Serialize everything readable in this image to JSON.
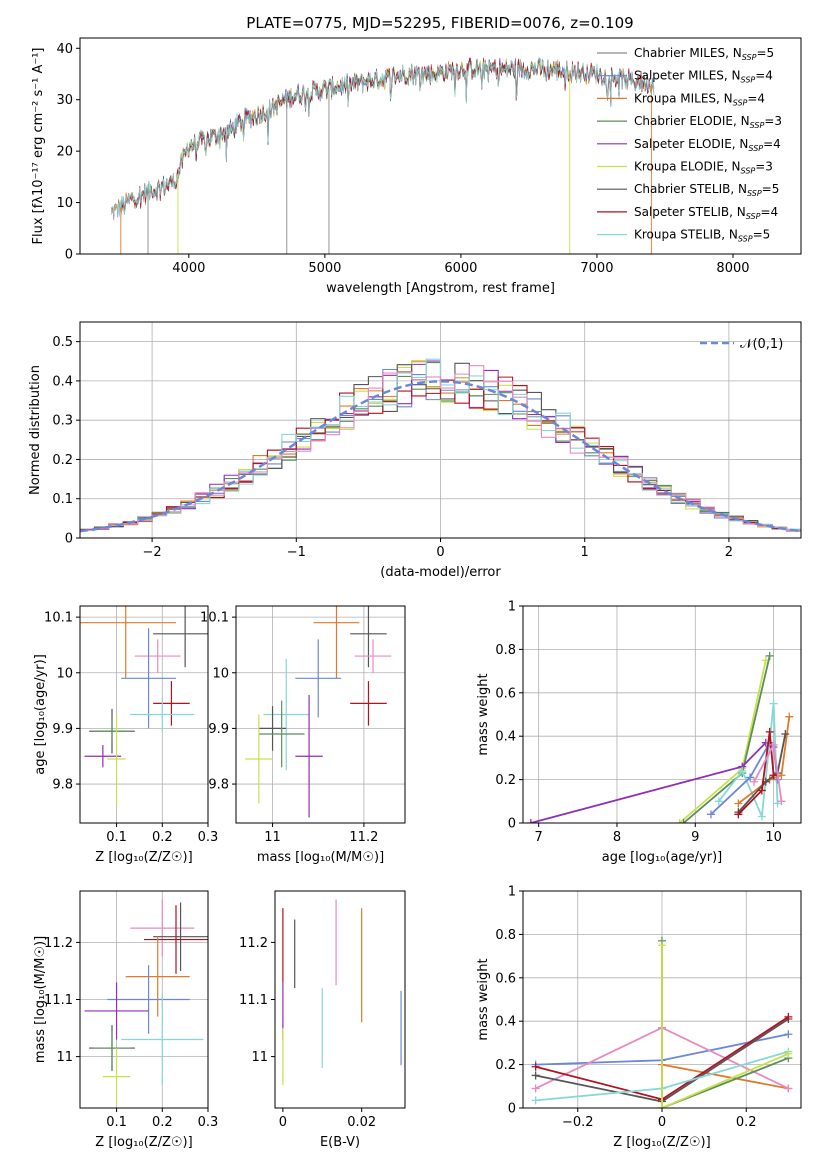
{
  "figure": {
    "title": "PLATE=0775, MJD=52295, FIBERID=0076, z=0.109",
    "colors": [
      "#6a87d9",
      "#e07a2a",
      "#5a8f5a",
      "#8f2fb5",
      "#c9e04a",
      "#555555",
      "#b3121f",
      "#e889c0",
      "#86d8d8",
      "#8a8a8a"
    ]
  },
  "chart_data": [
    {
      "type": "line",
      "title": "PLATE=0775, MJD=52295, FIBERID=0076, z=0.109",
      "xlabel": "wavelength [Angstrom, rest frame]",
      "ylabel": "Flux [fλ10⁻¹⁷ erg cm⁻² s⁻¹ A⁻¹]",
      "xlim": [
        3200,
        8500
      ],
      "ylim": [
        0,
        42
      ],
      "xticks": [
        4000,
        5000,
        6000,
        7000,
        8000
      ],
      "yticks": [
        0,
        10,
        20,
        30,
        40
      ],
      "grid": false,
      "legend_position": "right",
      "continuum": {
        "x": [
          3430,
          3500,
          3600,
          3700,
          3800,
          3900,
          3950,
          4000,
          4100,
          4200,
          4300,
          4400,
          4500,
          4600,
          4700,
          4800,
          4900,
          5000,
          5200,
          5400,
          5600,
          5800,
          6000,
          6200,
          6400,
          6600,
          6800,
          7000,
          7200,
          7400
        ],
        "y": [
          8,
          9,
          11,
          12,
          13,
          14,
          18,
          21,
          22,
          23,
          24,
          26,
          27,
          28,
          30,
          31,
          31.5,
          32,
          33,
          34,
          35,
          35,
          36,
          36,
          36,
          36,
          35.5,
          35,
          34,
          33
        ]
      },
      "series": [
        {
          "name": "Chabrier MILES, N_SSP=5",
          "color": "#8a8a8a",
          "xmin": 3430,
          "xmax": 7420
        },
        {
          "name": "Salpeter MILES, N_SSP=4",
          "color": "#6a87d9",
          "xmin": 3430,
          "xmax": 7420
        },
        {
          "name": "Kroupa MILES, N_SSP=4",
          "color": "#e07a2a",
          "xmin": 3430,
          "xmax": 7420
        },
        {
          "name": "Chabrier ELODIE, N_SSP=3",
          "color": "#5a8f5a",
          "xmin": 3900,
          "xmax": 6800
        },
        {
          "name": "Salpeter ELODIE, N_SSP=4",
          "color": "#8f2fb5",
          "xmin": 3900,
          "xmax": 6800
        },
        {
          "name": "Kroupa ELODIE, N_SSP=3",
          "color": "#c9e04a",
          "xmin": 3900,
          "xmax": 6800
        },
        {
          "name": "Chabrier STELIB, N_SSP=5",
          "color": "#555555",
          "xmin": 3500,
          "xmax": 7400
        },
        {
          "name": "Salpeter STELIB, N_SSP=4",
          "color": "#b3121f",
          "xmin": 3500,
          "xmax": 7400
        },
        {
          "name": "Kroupa STELIB, N_SSP=5",
          "color": "#86d8d8",
          "xmin": 3430,
          "xmax": 7420
        }
      ],
      "legend": [
        {
          "label": "Chabrier MILES, N",
          "sub": "SSP",
          "suffix": "=5",
          "color": "#8a8a8a"
        },
        {
          "label": "Salpeter MILES, N",
          "sub": "SSP",
          "suffix": "=4",
          "color": "#6a87d9"
        },
        {
          "label": "Kroupa MILES, N",
          "sub": "SSP",
          "suffix": "=4",
          "color": "#e07a2a"
        },
        {
          "label": "Chabrier ELODIE, N",
          "sub": "SSP",
          "suffix": "=3",
          "color": "#5a8f5a"
        },
        {
          "label": "Salpeter ELODIE, N",
          "sub": "SSP",
          "suffix": "=4",
          "color": "#8f2fb5"
        },
        {
          "label": "Kroupa ELODIE, N",
          "sub": "SSP",
          "suffix": "=3",
          "color": "#c9e04a"
        },
        {
          "label": "Chabrier STELIB, N",
          "sub": "SSP",
          "suffix": "=5",
          "color": "#555555"
        },
        {
          "label": "Salpeter STELIB, N",
          "sub": "SSP",
          "suffix": "=4",
          "color": "#b3121f"
        },
        {
          "label": "Kroupa STELIB, N",
          "sub": "SSP",
          "suffix": "=5",
          "color": "#86d8d8"
        }
      ]
    },
    {
      "type": "area",
      "xlabel": "(data-model)/error",
      "ylabel": "Normed distribution",
      "xlim": [
        -2.5,
        2.5
      ],
      "ylim": [
        0,
        0.55
      ],
      "xticks": [
        -2,
        -1,
        0,
        1,
        2
      ],
      "yticks": [
        0.0,
        0.1,
        0.2,
        0.3,
        0.4,
        0.5
      ],
      "grid": true,
      "legend_position": "top-right",
      "reference_curve": {
        "label": "𝒩(0,1)",
        "color": "#6a87d9",
        "style": "dashed"
      },
      "bin_width": 0.1,
      "histogram_colors": [
        "#6a87d9",
        "#e07a2a",
        "#5a8f5a",
        "#8f2fb5",
        "#c9e04a",
        "#555555",
        "#b3121f",
        "#86d8d8",
        "#e889c0"
      ]
    },
    {
      "type": "scatter",
      "xlabel": "Z [log₁₀(Z/Z☉)]",
      "ylabel": "age  [log₁₀(age/yr)]",
      "xlim": [
        0.02,
        0.3
      ],
      "ylim": [
        9.73,
        10.12
      ],
      "xticks": [
        0.1,
        0.2,
        0.3
      ],
      "yticks": [
        9.8,
        9.9,
        10.0,
        10.1
      ],
      "grid": true,
      "points": [
        {
          "x": 0.12,
          "y": 10.09,
          "xerr": 0.11,
          "yerr": 0.1,
          "color": "#e07a2a"
        },
        {
          "x": 0.25,
          "y": 10.07,
          "xerr": 0.07,
          "yerr": 0.06,
          "color": "#555555"
        },
        {
          "x": 0.19,
          "y": 10.03,
          "xerr": 0.05,
          "yerr": 0.03,
          "color": "#e889c0"
        },
        {
          "x": 0.17,
          "y": 9.99,
          "xerr": 0.06,
          "yerr": 0.09,
          "color": "#6a87d9"
        },
        {
          "x": 0.22,
          "y": 9.945,
          "xerr": 0.04,
          "yerr": 0.04,
          "color": "#b3121f"
        },
        {
          "x": 0.2,
          "y": 9.925,
          "xerr": 0.07,
          "yerr": 0.03,
          "color": "#86d8d8"
        },
        {
          "x": 0.09,
          "y": 9.895,
          "xerr": 0.05,
          "yerr": 0.04,
          "color": "#555555"
        },
        {
          "x": 0.09,
          "y": 9.895,
          "xerr": 0.04,
          "yerr": 0.02,
          "color": "#5a8f5a"
        },
        {
          "x": 0.07,
          "y": 9.85,
          "xerr": 0.04,
          "yerr": 0.02,
          "color": "#8f2fb5"
        },
        {
          "x": 0.1,
          "y": 9.845,
          "xerr": 0.02,
          "yerr": 0.08,
          "color": "#c9e04a"
        }
      ]
    },
    {
      "type": "scatter",
      "xlabel": "mass [log₁₀(M/M☉)]",
      "ylabel": "",
      "xlim": [
        10.92,
        11.29
      ],
      "ylim": [
        9.73,
        10.12
      ],
      "xticks": [
        11.0,
        11.2
      ],
      "yticks": [
        9.8,
        9.9,
        10.0,
        10.1
      ],
      "grid": true,
      "points": [
        {
          "x": 11.14,
          "y": 10.09,
          "xerr": 0.05,
          "yerr": 0.1,
          "color": "#e07a2a"
        },
        {
          "x": 11.21,
          "y": 10.07,
          "xerr": 0.04,
          "yerr": 0.06,
          "color": "#555555"
        },
        {
          "x": 11.22,
          "y": 10.03,
          "xerr": 0.04,
          "yerr": 0.03,
          "color": "#e889c0"
        },
        {
          "x": 11.1,
          "y": 9.99,
          "xerr": 0.05,
          "yerr": 0.07,
          "color": "#6a87d9"
        },
        {
          "x": 11.21,
          "y": 9.945,
          "xerr": 0.04,
          "yerr": 0.04,
          "color": "#b3121f"
        },
        {
          "x": 11.03,
          "y": 9.925,
          "xerr": 0.05,
          "yerr": 0.1,
          "color": "#86d8d8"
        },
        {
          "x": 11.0,
          "y": 9.9,
          "xerr": 0.03,
          "yerr": 0.04,
          "color": "#555555"
        },
        {
          "x": 11.02,
          "y": 9.89,
          "xerr": 0.05,
          "yerr": 0.06,
          "color": "#5a8f5a"
        },
        {
          "x": 11.08,
          "y": 9.85,
          "xerr": 0.03,
          "yerr": 0.11,
          "color": "#8f2fb5"
        },
        {
          "x": 10.97,
          "y": 9.845,
          "xerr": 0.03,
          "yerr": 0.08,
          "color": "#c9e04a"
        }
      ]
    },
    {
      "type": "line",
      "xlabel": "age  [log₁₀(age/yr)]",
      "ylabel": "mass weight",
      "xlim": [
        6.8,
        10.35
      ],
      "ylim": [
        0.0,
        1.0
      ],
      "xticks": [
        7,
        8,
        9,
        10
      ],
      "yticks": [
        0.0,
        0.2,
        0.4,
        0.6,
        0.8,
        1.0
      ],
      "grid": true,
      "series": [
        {
          "color": "#c9e04a",
          "x": [
            8.8,
            9.6,
            9.9
          ],
          "y": [
            0.0,
            0.25,
            0.75
          ]
        },
        {
          "color": "#5a8f5a",
          "x": [
            8.85,
            9.6,
            9.95
          ],
          "y": [
            0.0,
            0.23,
            0.77
          ]
        },
        {
          "color": "#8f2fb5",
          "x": [
            6.9,
            9.6,
            9.9
          ],
          "y": [
            0.0,
            0.26,
            0.37
          ]
        },
        {
          "color": "#86d8d8",
          "x": [
            9.3,
            9.6,
            9.85,
            10.0,
            10.05
          ],
          "y": [
            0.1,
            0.24,
            0.03,
            0.55,
            0.09
          ]
        },
        {
          "color": "#6a87d9",
          "x": [
            9.2,
            9.7,
            9.95,
            10.0,
            10.05
          ],
          "y": [
            0.04,
            0.21,
            0.37,
            0.35,
            0.2
          ]
        },
        {
          "color": "#e07a2a",
          "x": [
            9.55,
            9.95,
            10.1,
            10.2
          ],
          "y": [
            0.09,
            0.2,
            0.22,
            0.49
          ]
        },
        {
          "color": "#555555",
          "x": [
            9.55,
            9.9,
            10.05,
            10.15
          ],
          "y": [
            0.05,
            0.19,
            0.23,
            0.41
          ]
        },
        {
          "color": "#b3121f",
          "x": [
            9.55,
            9.85,
            9.95,
            10.0
          ],
          "y": [
            0.04,
            0.15,
            0.42,
            0.22
          ]
        },
        {
          "color": "#e889c0",
          "x": [
            9.75,
            10.0,
            10.1
          ],
          "y": [
            0.19,
            0.36,
            0.1
          ]
        }
      ]
    },
    {
      "type": "scatter",
      "xlabel": "Z [log₁₀(Z/Z☉)]",
      "ylabel": "mass [log₁₀(M/M☉)]",
      "xlim": [
        0.02,
        0.3
      ],
      "ylim": [
        10.91,
        11.29
      ],
      "xticks": [
        0.1,
        0.2,
        0.3
      ],
      "yticks": [
        11.0,
        11.1,
        11.2
      ],
      "grid": true,
      "points": [
        {
          "x": 0.2,
          "y": 11.225,
          "xerr": 0.07,
          "yerr": 0.05,
          "color": "#e889c0"
        },
        {
          "x": 0.24,
          "y": 11.21,
          "xerr": 0.06,
          "yerr": 0.06,
          "color": "#555555"
        },
        {
          "x": 0.23,
          "y": 11.205,
          "xerr": 0.07,
          "yerr": 0.06,
          "color": "#b3121f"
        },
        {
          "x": 0.19,
          "y": 11.14,
          "xerr": 0.07,
          "yerr": 0.07,
          "color": "#e07a2a"
        },
        {
          "x": 0.17,
          "y": 11.1,
          "xerr": 0.09,
          "yerr": 0.06,
          "color": "#6a87d9"
        },
        {
          "x": 0.1,
          "y": 11.08,
          "xerr": 0.07,
          "yerr": 0.05,
          "color": "#8f2fb5"
        },
        {
          "x": 0.2,
          "y": 11.03,
          "xerr": 0.09,
          "yerr": 0.08,
          "color": "#86d8d8"
        },
        {
          "x": 0.09,
          "y": 11.015,
          "xerr": 0.05,
          "yerr": 0.04,
          "color": "#555555"
        },
        {
          "x": 0.09,
          "y": 11.015,
          "xerr": 0.04,
          "yerr": 0.03,
          "color": "#5a8f5a"
        },
        {
          "x": 0.1,
          "y": 10.965,
          "xerr": 0.03,
          "yerr": 0.05,
          "color": "#c9e04a"
        }
      ]
    },
    {
      "type": "scatter",
      "xlabel": "E(B-V)",
      "ylabel": "",
      "xlim": [
        -0.002,
        0.031
      ],
      "ylim": [
        10.91,
        11.29
      ],
      "xticks": [
        0.0,
        0.02
      ],
      "yticks": [
        11.0,
        11.1,
        11.2
      ],
      "grid": false,
      "points": [
        {
          "x": 0.0,
          "y": 11.195,
          "yerr": 0.065,
          "color": "#b3121f"
        },
        {
          "x": 0.0,
          "y": 11.08,
          "yerr": 0.05,
          "color": "#8f2fb5"
        },
        {
          "x": 0.0,
          "y": 11.0,
          "yerr": 0.05,
          "color": "#c9e04a"
        },
        {
          "x": 0.003,
          "y": 11.18,
          "yerr": 0.06,
          "color": "#555555"
        },
        {
          "x": 0.01,
          "y": 11.05,
          "yerr": 0.07,
          "color": "#86d8d8"
        },
        {
          "x": 0.0135,
          "y": 11.2,
          "yerr": 0.075,
          "color": "#e889c0"
        },
        {
          "x": 0.02,
          "y": 11.16,
          "yerr": 0.1,
          "color": "#e07a2a"
        },
        {
          "x": 0.03,
          "y": 11.05,
          "yerr": 0.065,
          "color": "#6a87d9"
        }
      ]
    },
    {
      "type": "line",
      "xlabel": "Z [log₁₀(Z/Z☉)]",
      "ylabel": "mass weight",
      "xlim": [
        -0.33,
        0.33
      ],
      "ylim": [
        0.0,
        1.0
      ],
      "xticks": [
        -0.2,
        0.0,
        0.2
      ],
      "yticks": [
        0.0,
        0.2,
        0.4,
        0.6,
        0.8,
        1.0
      ],
      "grid": true,
      "series": [
        {
          "color": "#6a87d9",
          "x": [
            -0.3,
            0.0,
            0.3
          ],
          "y": [
            0.2,
            0.22,
            0.34
          ]
        },
        {
          "color": "#e07a2a",
          "x": [
            0.0,
            0.3
          ],
          "y": [
            0.2,
            0.09
          ]
        },
        {
          "color": "#e889c0",
          "x": [
            -0.3,
            0.0,
            0.3
          ],
          "y": [
            0.09,
            0.37,
            0.09
          ]
        },
        {
          "color": "#555555",
          "x": [
            -0.3,
            0.0,
            0.3
          ],
          "y": [
            0.15,
            0.03,
            0.41
          ]
        },
        {
          "color": "#b3121f",
          "x": [
            -0.3,
            0.0,
            0.3
          ],
          "y": [
            0.19,
            0.04,
            0.42
          ]
        },
        {
          "color": "#86d8d8",
          "x": [
            -0.3,
            0.0,
            0.3
          ],
          "y": [
            0.035,
            0.09,
            0.26
          ]
        },
        {
          "color": "#5a8f5a",
          "x": [
            0.0,
            0.0,
            0.3
          ],
          "y": [
            0.77,
            0.0,
            0.23
          ]
        },
        {
          "color": "#c9e04a",
          "x": [
            0.0,
            0.0,
            0.3
          ],
          "y": [
            0.75,
            0.0,
            0.25
          ]
        }
      ]
    }
  ]
}
